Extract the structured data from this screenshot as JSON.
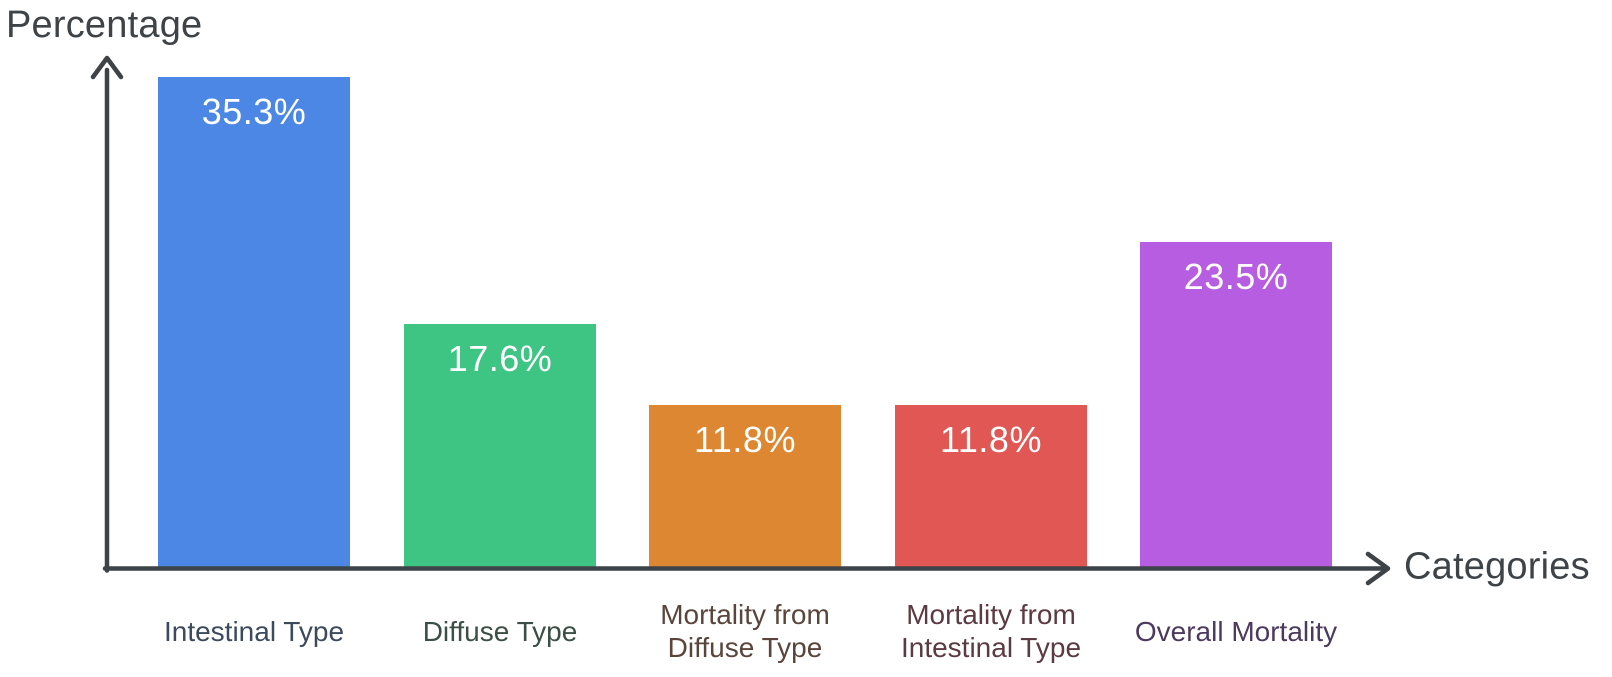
{
  "chart_data": {
    "type": "bar",
    "title": "",
    "xlabel": "Categories",
    "ylabel": "Percentage",
    "categories": [
      "Intestinal Type",
      "Diffuse Type",
      "Mortality from\nDiffuse Type",
      "Mortality from\nIntestinal Type",
      "Overall Mortality"
    ],
    "values": [
      35.3,
      17.6,
      11.8,
      11.8,
      23.5
    ],
    "value_labels": [
      "35.3%",
      "17.6%",
      "11.8%",
      "11.8%",
      "23.5%"
    ],
    "bar_colors": [
      "#4C87E6",
      "#3EC584",
      "#DE8732",
      "#E15753",
      "#B75DE1"
    ],
    "category_label_colors": [
      "#3D4A5C",
      "#3B4F44",
      "#5A453C",
      "#5C3A42",
      "#4C3A5E"
    ],
    "value_label_color": "#FFFFFF",
    "axis_color": "#3E4347",
    "background": "#FFFFFF",
    "ylim": [
      0,
      36
    ],
    "grid": false,
    "legend": false
  }
}
